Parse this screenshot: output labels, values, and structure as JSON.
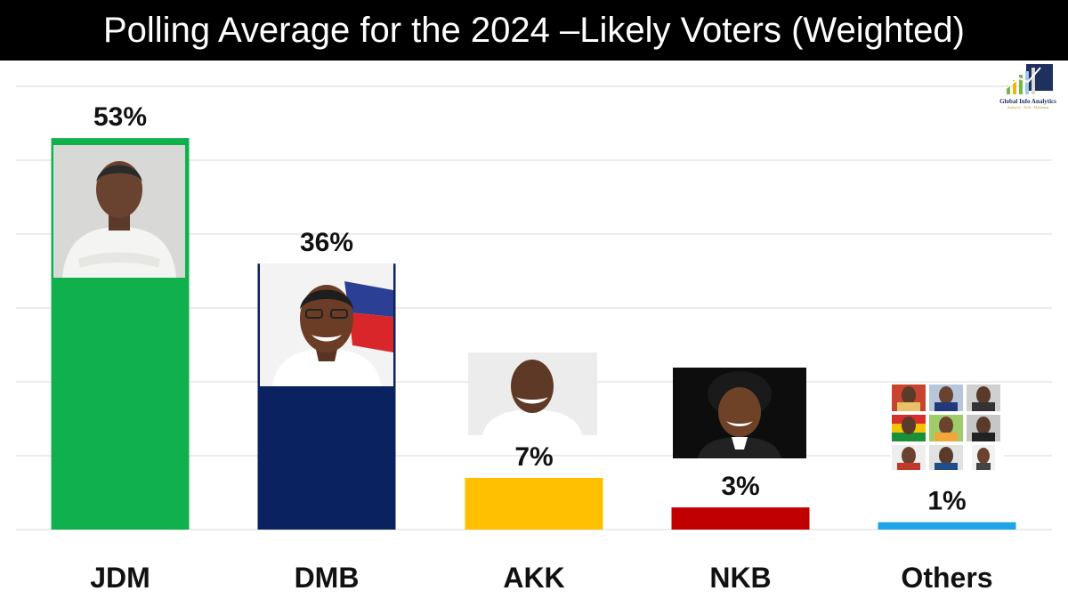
{
  "title": "Polling Average for the 2024 –Likely Voters (Weighted)",
  "logo": {
    "name": "Global Info Analytics",
    "tagline": "Analytics · Polls · Marketing"
  },
  "chart_data": {
    "type": "bar",
    "title": "Polling Average for the 2024 –Likely Voters (Weighted)",
    "xlabel": "",
    "ylabel": "",
    "categories": [
      "JDM",
      "DMB",
      "AKK",
      "NKB",
      "Others"
    ],
    "values": [
      53,
      36,
      7,
      3,
      1
    ],
    "value_labels": [
      "53%",
      "36%",
      "7%",
      "3%",
      "1%"
    ],
    "colors": [
      "#10b14c",
      "#0b2260",
      "#fec000",
      "#c00000",
      "#1fa4ea"
    ],
    "ylim": [
      0,
      60
    ],
    "grid": true,
    "legend": "none"
  }
}
